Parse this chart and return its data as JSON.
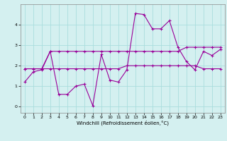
{
  "xlabel": "Windchill (Refroidissement éolien,°C)",
  "x": [
    0,
    1,
    2,
    3,
    4,
    5,
    6,
    7,
    8,
    9,
    10,
    11,
    12,
    13,
    14,
    15,
    16,
    17,
    18,
    19,
    20,
    21,
    22,
    23
  ],
  "line1": [
    1.2,
    1.7,
    1.8,
    2.7,
    0.6,
    0.6,
    1.0,
    1.1,
    0.05,
    2.55,
    1.3,
    1.2,
    1.8,
    4.55,
    4.5,
    3.8,
    3.8,
    4.2,
    2.9,
    2.2,
    1.8,
    2.7,
    2.5,
    2.8
  ],
  "line2": [
    1.85,
    1.85,
    1.85,
    2.7,
    2.7,
    2.7,
    2.7,
    2.7,
    2.7,
    2.7,
    2.7,
    2.7,
    2.7,
    2.7,
    2.7,
    2.7,
    2.7,
    2.7,
    2.7,
    2.9,
    2.9,
    2.9,
    2.9,
    2.9
  ],
  "line3": [
    1.85,
    1.85,
    1.85,
    1.85,
    1.85,
    1.85,
    1.85,
    1.85,
    1.85,
    1.85,
    1.85,
    1.85,
    2.0,
    2.0,
    2.0,
    2.0,
    2.0,
    2.0,
    2.0,
    2.0,
    2.0,
    1.85,
    1.85,
    1.85
  ],
  "line_color": "#990099",
  "bg_color": "#d4f0f0",
  "grid_color": "#aadddd",
  "ylim": [
    -0.3,
    5.0
  ],
  "xlim": [
    -0.5,
    23.5
  ],
  "yticks": [
    0,
    1,
    2,
    3,
    4
  ],
  "xticks": [
    0,
    1,
    2,
    3,
    4,
    5,
    6,
    7,
    8,
    9,
    10,
    11,
    12,
    13,
    14,
    15,
    16,
    17,
    18,
    19,
    20,
    21,
    22,
    23
  ]
}
